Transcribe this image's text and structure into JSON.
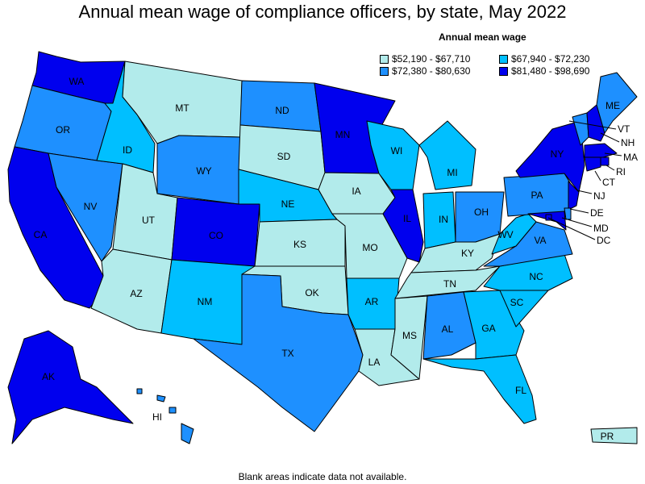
{
  "title": "Annual mean wage of compliance officers, by state, May 2022",
  "legend": {
    "title": "Annual mean wage",
    "items": [
      {
        "label": "$52,190 - $67,710",
        "color": "#b2ebeb"
      },
      {
        "label": "$67,940 - $72,230",
        "color": "#00bfff"
      },
      {
        "label": "$72,380 - $80,630",
        "color": "#1e90ff"
      },
      {
        "label": "$81,480 - $98,690",
        "color": "#0000ee"
      }
    ]
  },
  "footnote": "Blank areas indicate data not available.",
  "states": [
    {
      "abbr": "WA",
      "tier": 3
    },
    {
      "abbr": "OR",
      "tier": 2
    },
    {
      "abbr": "CA",
      "tier": 3
    },
    {
      "abbr": "NV",
      "tier": 2
    },
    {
      "abbr": "ID",
      "tier": 1
    },
    {
      "abbr": "MT",
      "tier": 0
    },
    {
      "abbr": "WY",
      "tier": 2
    },
    {
      "abbr": "UT",
      "tier": 0
    },
    {
      "abbr": "AZ",
      "tier": 0
    },
    {
      "abbr": "CO",
      "tier": 3
    },
    {
      "abbr": "NM",
      "tier": 1
    },
    {
      "abbr": "ND",
      "tier": 2
    },
    {
      "abbr": "SD",
      "tier": 0
    },
    {
      "abbr": "NE",
      "tier": 1
    },
    {
      "abbr": "KS",
      "tier": 0
    },
    {
      "abbr": "OK",
      "tier": 0
    },
    {
      "abbr": "TX",
      "tier": 2
    },
    {
      "abbr": "MN",
      "tier": 3
    },
    {
      "abbr": "IA",
      "tier": 0
    },
    {
      "abbr": "MO",
      "tier": 0
    },
    {
      "abbr": "AR",
      "tier": 1
    },
    {
      "abbr": "LA",
      "tier": 0
    },
    {
      "abbr": "WI",
      "tier": 1
    },
    {
      "abbr": "IL",
      "tier": 3
    },
    {
      "abbr": "MI",
      "tier": 1
    },
    {
      "abbr": "IN",
      "tier": 1
    },
    {
      "abbr": "OH",
      "tier": 2
    },
    {
      "abbr": "KY",
      "tier": 0
    },
    {
      "abbr": "TN",
      "tier": 0
    },
    {
      "abbr": "MS",
      "tier": 0
    },
    {
      "abbr": "AL",
      "tier": 2
    },
    {
      "abbr": "GA",
      "tier": 1
    },
    {
      "abbr": "FL",
      "tier": 1
    },
    {
      "abbr": "SC",
      "tier": 1
    },
    {
      "abbr": "NC",
      "tier": 1
    },
    {
      "abbr": "VA",
      "tier": 2
    },
    {
      "abbr": "WV",
      "tier": 1
    },
    {
      "abbr": "PA",
      "tier": 2
    },
    {
      "abbr": "NY",
      "tier": 3
    },
    {
      "abbr": "VT",
      "tier": 2
    },
    {
      "abbr": "NH",
      "tier": 3
    },
    {
      "abbr": "ME",
      "tier": 2
    },
    {
      "abbr": "MA",
      "tier": 3
    },
    {
      "abbr": "RI",
      "tier": 3
    },
    {
      "abbr": "CT",
      "tier": 3
    },
    {
      "abbr": "NJ",
      "tier": 3
    },
    {
      "abbr": "DE",
      "tier": 2
    },
    {
      "abbr": "MD",
      "tier": 3
    },
    {
      "abbr": "DC",
      "tier": 3
    },
    {
      "abbr": "AK",
      "tier": 3
    },
    {
      "abbr": "HI",
      "tier": 2
    },
    {
      "abbr": "PR",
      "tier": 0
    }
  ]
}
